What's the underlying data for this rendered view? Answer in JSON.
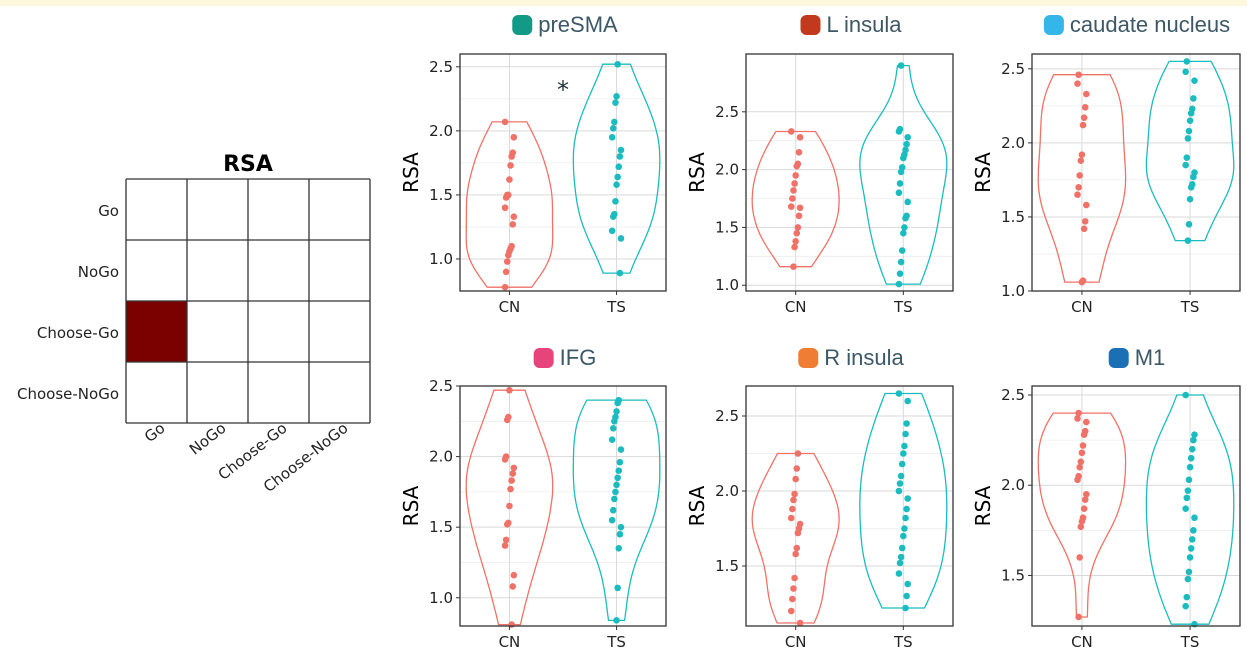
{
  "rsa_matrix": {
    "title": "RSA",
    "row_labels": [
      "Go",
      "NoGo",
      "Choose-Go",
      "Choose-NoGo"
    ],
    "col_labels": [
      "Go",
      "NoGo",
      "Choose-Go",
      "Choose-NoGo"
    ],
    "highlight": {
      "row": 2,
      "col": 0,
      "color": "#7b0000"
    }
  },
  "chart_data": [
    {
      "type": "violin",
      "title": "preSMA",
      "title_marker_color": "#119a86",
      "ylabel": "RSA",
      "categories": [
        "CN",
        "TS"
      ],
      "ylim": [
        0.75,
        2.6
      ],
      "yticks": [
        1.0,
        1.5,
        2.0,
        2.5
      ],
      "annotation": "*",
      "series": [
        {
          "values": [
            0.78,
            0.9,
            0.98,
            1.03,
            1.06,
            1.08,
            1.1,
            1.27,
            1.33,
            1.4,
            1.48,
            1.5,
            1.5,
            1.62,
            1.73,
            1.8,
            1.83,
            1.95,
            2.07
          ]
        },
        {
          "values": [
            0.89,
            1.16,
            1.22,
            1.33,
            1.35,
            1.45,
            1.58,
            1.64,
            1.72,
            1.8,
            1.85,
            1.95,
            2.02,
            2.07,
            2.22,
            2.27,
            2.52
          ]
        }
      ]
    },
    {
      "type": "violin",
      "title": "L insula",
      "title_marker_color": "#c23a1e",
      "ylabel": "RSA",
      "categories": [
        "CN",
        "TS"
      ],
      "ylim": [
        0.95,
        3.0
      ],
      "yticks": [
        1.0,
        1.5,
        2.0,
        2.5
      ],
      "series": [
        {
          "values": [
            1.16,
            1.33,
            1.38,
            1.45,
            1.5,
            1.6,
            1.67,
            1.68,
            1.75,
            1.82,
            1.88,
            1.95,
            2.03,
            2.05,
            2.15,
            2.28,
            2.33
          ]
        },
        {
          "values": [
            1.01,
            1.1,
            1.2,
            1.3,
            1.45,
            1.5,
            1.58,
            1.6,
            1.72,
            1.8,
            1.88,
            1.98,
            2.02,
            2.1,
            2.13,
            2.17,
            2.22,
            2.28,
            2.33,
            2.35,
            2.9
          ]
        }
      ]
    },
    {
      "type": "violin",
      "title": "caudate nucleus",
      "title_marker_color": "#35b6e8",
      "ylabel": "RSA",
      "categories": [
        "CN",
        "TS"
      ],
      "ylim": [
        1.0,
        2.6
      ],
      "yticks": [
        1.0,
        1.5,
        2.0,
        2.5
      ],
      "series": [
        {
          "values": [
            1.06,
            1.07,
            1.42,
            1.47,
            1.58,
            1.65,
            1.7,
            1.78,
            1.88,
            1.92,
            2.12,
            2.17,
            2.24,
            2.33,
            2.4,
            2.46
          ]
        },
        {
          "values": [
            1.34,
            1.45,
            1.62,
            1.7,
            1.72,
            1.77,
            1.8,
            1.85,
            1.9,
            2.03,
            2.08,
            2.15,
            2.2,
            2.23,
            2.3,
            2.42,
            2.48,
            2.55
          ]
        }
      ]
    },
    {
      "type": "violin",
      "title": "IFG",
      "title_marker_color": "#e8447c",
      "ylabel": "RSA",
      "categories": [
        "CN",
        "TS"
      ],
      "ylim": [
        0.8,
        2.5
      ],
      "yticks": [
        1.0,
        1.5,
        2.0,
        2.5
      ],
      "series": [
        {
          "values": [
            0.81,
            1.08,
            1.16,
            1.37,
            1.41,
            1.52,
            1.53,
            1.65,
            1.77,
            1.83,
            1.88,
            1.92,
            1.98,
            2.0,
            2.26,
            2.28,
            2.47
          ]
        },
        {
          "values": [
            0.84,
            1.07,
            1.35,
            1.45,
            1.5,
            1.55,
            1.62,
            1.7,
            1.75,
            1.8,
            1.85,
            1.9,
            1.96,
            2.05,
            2.12,
            2.2,
            2.25,
            2.28,
            2.32,
            2.38,
            2.4
          ]
        }
      ]
    },
    {
      "type": "violin",
      "title": "R insula",
      "title_marker_color": "#ef7d33",
      "ylabel": "RSA",
      "categories": [
        "CN",
        "TS"
      ],
      "ylim": [
        1.1,
        2.7
      ],
      "yticks": [
        1.5,
        2.0,
        2.5
      ],
      "series": [
        {
          "values": [
            1.12,
            1.2,
            1.28,
            1.35,
            1.42,
            1.58,
            1.62,
            1.72,
            1.75,
            1.78,
            1.82,
            1.88,
            1.94,
            1.98,
            2.08,
            2.15,
            2.25
          ]
        },
        {
          "values": [
            1.22,
            1.3,
            1.38,
            1.45,
            1.52,
            1.56,
            1.62,
            1.7,
            1.75,
            1.82,
            1.88,
            1.95,
            2.0,
            2.05,
            2.1,
            2.18,
            2.25,
            2.3,
            2.38,
            2.45,
            2.6,
            2.65
          ]
        }
      ]
    },
    {
      "type": "violin",
      "title": "M1",
      "title_marker_color": "#1a6fb5",
      "ylabel": "RSA",
      "categories": [
        "CN",
        "TS"
      ],
      "ylim": [
        1.22,
        2.55
      ],
      "yticks": [
        1.5,
        2.0,
        2.5
      ],
      "series": [
        {
          "values": [
            1.27,
            1.6,
            1.77,
            1.8,
            1.82,
            1.87,
            1.92,
            1.95,
            2.03,
            2.05,
            2.1,
            2.13,
            2.18,
            2.22,
            2.28,
            2.3,
            2.35,
            2.37,
            2.4
          ]
        },
        {
          "values": [
            1.23,
            1.33,
            1.38,
            1.48,
            1.52,
            1.6,
            1.65,
            1.7,
            1.75,
            1.82,
            1.87,
            1.93,
            1.97,
            2.03,
            2.1,
            2.15,
            2.2,
            2.25,
            2.28,
            2.5
          ]
        }
      ]
    }
  ],
  "colors": {
    "CN": "#f07167",
    "TS": "#1bbcbf",
    "grid": "#d9d9d9",
    "frame": "#333333"
  }
}
